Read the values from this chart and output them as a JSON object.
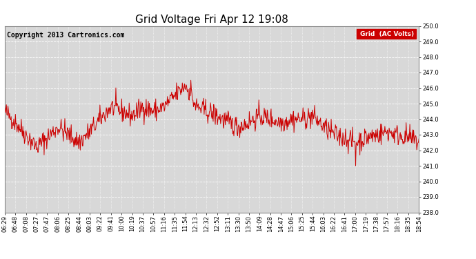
{
  "title": "Grid Voltage Fri Apr 12 19:08",
  "copyright": "Copyright 2013 Cartronics.com",
  "legend_label": "Grid  (AC Volts)",
  "legend_bg": "#cc0000",
  "legend_text_color": "#ffffff",
  "line_color": "#cc0000",
  "bg_color": "#ffffff",
  "plot_bg_color": "#d8d8d8",
  "grid_color": "#ffffff",
  "ylim": [
    238.0,
    250.0
  ],
  "yticks": [
    238.0,
    239.0,
    240.0,
    241.0,
    242.0,
    243.0,
    244.0,
    245.0,
    246.0,
    247.0,
    248.0,
    249.0,
    250.0
  ],
  "xtick_labels": [
    "06:29",
    "06:48",
    "07:08",
    "07:27",
    "07:47",
    "08:06",
    "08:25",
    "08:44",
    "09:03",
    "09:22",
    "09:41",
    "10:00",
    "10:19",
    "10:37",
    "10:57",
    "11:16",
    "11:35",
    "11:54",
    "12:13",
    "12:32",
    "12:52",
    "13:11",
    "13:30",
    "13:50",
    "14:09",
    "14:28",
    "14:47",
    "15:06",
    "15:25",
    "15:44",
    "16:03",
    "16:22",
    "16:41",
    "17:00",
    "17:19",
    "17:38",
    "17:57",
    "18:16",
    "18:35",
    "18:54"
  ],
  "title_fontsize": 11,
  "tick_fontsize": 6,
  "copyright_fontsize": 7,
  "line_width": 0.7,
  "seed": 42,
  "n_points": 780,
  "base_values": [
    244.5,
    243.8,
    243.0,
    242.2,
    242.8,
    243.5,
    243.0,
    242.5,
    243.2,
    244.0,
    244.8,
    244.5,
    244.2,
    244.8,
    244.5,
    244.8,
    245.5,
    246.2,
    244.8,
    244.5,
    244.2,
    243.8,
    243.5,
    243.8,
    244.2,
    244.0,
    243.8,
    244.0,
    244.0,
    244.2,
    243.5,
    243.0,
    242.8,
    242.5,
    242.8,
    243.0,
    243.2,
    243.0,
    242.8,
    242.5
  ]
}
